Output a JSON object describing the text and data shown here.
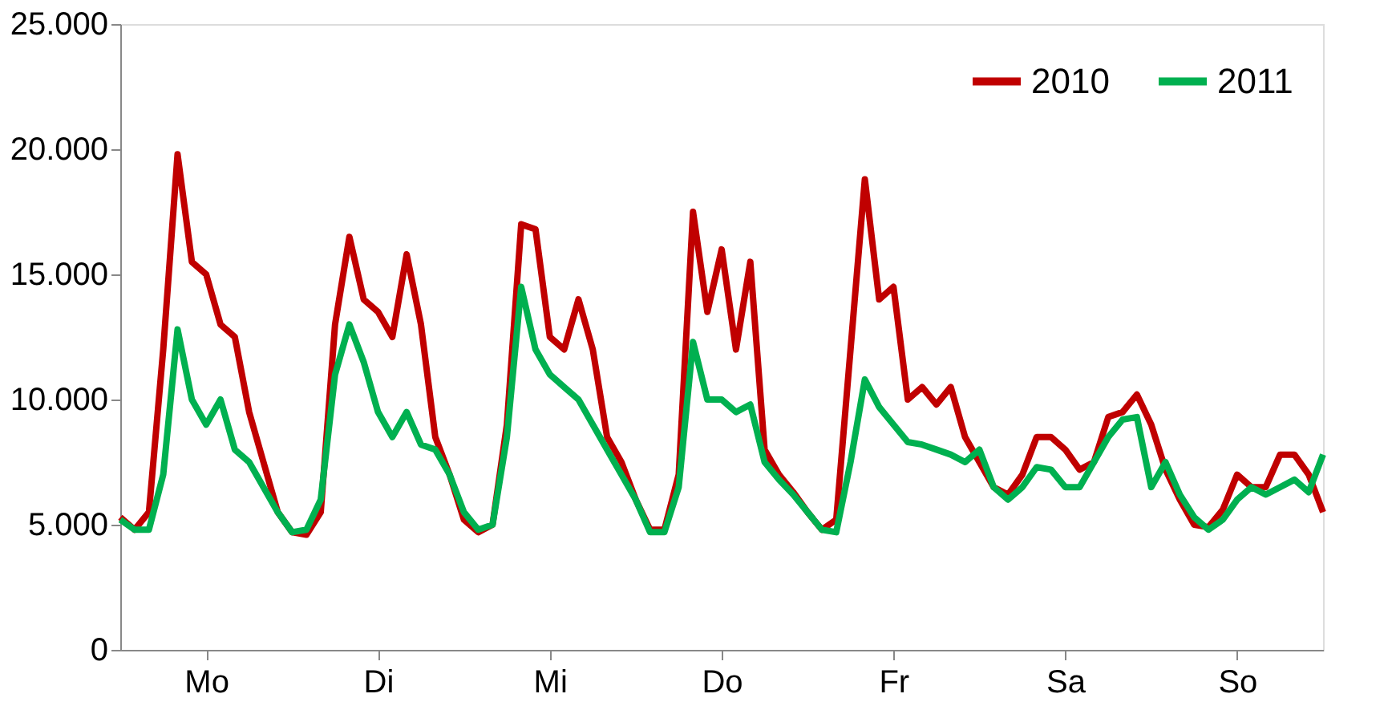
{
  "chart_data": {
    "type": "line",
    "categories": [
      null,
      null,
      null,
      null,
      null,
      null,
      "Mo",
      null,
      null,
      null,
      null,
      null,
      null,
      null,
      null,
      null,
      null,
      null,
      "Di",
      null,
      null,
      null,
      null,
      null,
      null,
      null,
      null,
      null,
      null,
      null,
      "Mi",
      null,
      null,
      null,
      null,
      null,
      null,
      null,
      null,
      null,
      null,
      null,
      "Do",
      null,
      null,
      null,
      null,
      null,
      null,
      null,
      null,
      null,
      null,
      null,
      "Fr",
      null,
      null,
      null,
      null,
      null,
      null,
      null,
      null,
      null,
      null,
      null,
      "Sa",
      null,
      null,
      null,
      null,
      null,
      null,
      null,
      null,
      null,
      null,
      null,
      "So",
      null,
      null,
      null,
      null,
      null,
      null
    ],
    "series": [
      {
        "name": "2010",
        "color": "#c00000",
        "values": [
          5300,
          4800,
          5500,
          12000,
          19800,
          15500,
          15000,
          13000,
          12500,
          9500,
          7500,
          5500,
          4700,
          4600,
          5500,
          13000,
          16500,
          14000,
          13500,
          12500,
          15800,
          13000,
          8500,
          7000,
          5200,
          4700,
          5000,
          9000,
          17000,
          16800,
          12500,
          12000,
          14000,
          12000,
          8500,
          7500,
          6000,
          4800,
          4800,
          7000,
          17500,
          13500,
          16000,
          12000,
          15500,
          8000,
          7000,
          6300,
          5500,
          4800,
          5200,
          12000,
          18800,
          14000,
          14500,
          10000,
          10500,
          9800,
          10500,
          8500,
          7500,
          6500,
          6200,
          7000,
          8500,
          8500,
          8000,
          7200,
          7500,
          9300,
          9500,
          10200,
          9000,
          7200,
          6000,
          5000,
          4900,
          5600,
          7000,
          6500,
          6500,
          7800,
          7800,
          7000,
          5500
        ]
      },
      {
        "name": "2011",
        "color": "#00b050",
        "values": [
          5200,
          4800,
          4800,
          7000,
          12800,
          10000,
          9000,
          10000,
          8000,
          7500,
          6500,
          5500,
          4700,
          4800,
          6000,
          11000,
          13000,
          11500,
          9500,
          8500,
          9500,
          8200,
          8000,
          7000,
          5500,
          4800,
          5000,
          8500,
          14500,
          12000,
          11000,
          10500,
          10000,
          9000,
          8000,
          7000,
          6000,
          4700,
          4700,
          6500,
          12300,
          10000,
          10000,
          9500,
          9800,
          7500,
          6800,
          6200,
          5500,
          4800,
          4700,
          7500,
          10800,
          9700,
          9000,
          8300,
          8200,
          8000,
          7800,
          7500,
          8000,
          6500,
          6000,
          6500,
          7300,
          7200,
          6500,
          6500,
          7500,
          8500,
          9200,
          9300,
          6500,
          7500,
          6200,
          5300,
          4800,
          5200,
          6000,
          6500,
          6200,
          6500,
          6800,
          6300,
          7800
        ]
      }
    ],
    "ylim": [
      0,
      25000
    ],
    "yticks": [
      0,
      {
        "value": 5000,
        "label": "5.000"
      },
      {
        "value": 10000,
        "label": "10.000"
      },
      {
        "value": 15000,
        "label": "15.000"
      },
      {
        "value": 20000,
        "label": "20.000"
      },
      {
        "value": 25000,
        "label": "25.000"
      }
    ],
    "grid": false,
    "legend": "top right",
    "marker": "none",
    "line_style": "solid"
  }
}
